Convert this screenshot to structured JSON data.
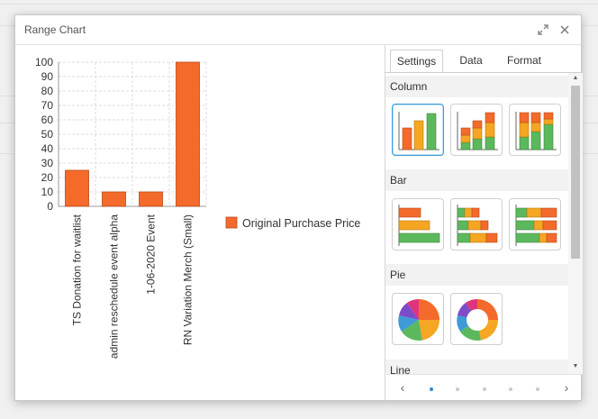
{
  "dialog": {
    "title": "Range Chart",
    "expand_icon": "expand-arrows-icon",
    "close_icon": "close-icon"
  },
  "chart_data": {
    "type": "bar",
    "categories": [
      "TS Donation for waitlist",
      "admin reschedule event alpha",
      "1-06-2020 Event",
      "RN Variation Merch (Small)"
    ],
    "series": [
      {
        "name": "Original Purchase Price",
        "values": [
          25,
          10,
          10,
          100
        ],
        "color": "#f46a2b"
      }
    ],
    "ylim": [
      0,
      100
    ],
    "yticks": [
      0,
      10,
      20,
      30,
      40,
      50,
      60,
      70,
      80,
      90,
      100
    ],
    "grid": true,
    "legend": "right",
    "xlabel": "",
    "ylabel": ""
  },
  "panel": {
    "tabs": [
      "Settings",
      "Data",
      "Format"
    ],
    "active_tab": "Settings",
    "sections": [
      {
        "label": "Column",
        "thumbs": [
          "clustered-column",
          "stacked-column",
          "100-percent-stacked-column"
        ]
      },
      {
        "label": "Bar",
        "thumbs": [
          "clustered-bar",
          "stacked-bar",
          "100-percent-stacked-bar"
        ]
      },
      {
        "label": "Pie",
        "thumbs": [
          "pie",
          "doughnut"
        ]
      },
      {
        "label": "Line",
        "thumbs": []
      }
    ],
    "pager": {
      "page_count": 5,
      "current_page": 1
    }
  },
  "colors": {
    "orange": "#f46a2b",
    "amber": "#f5a623",
    "green": "#5cb85c",
    "accent": "#3f9bd6"
  }
}
